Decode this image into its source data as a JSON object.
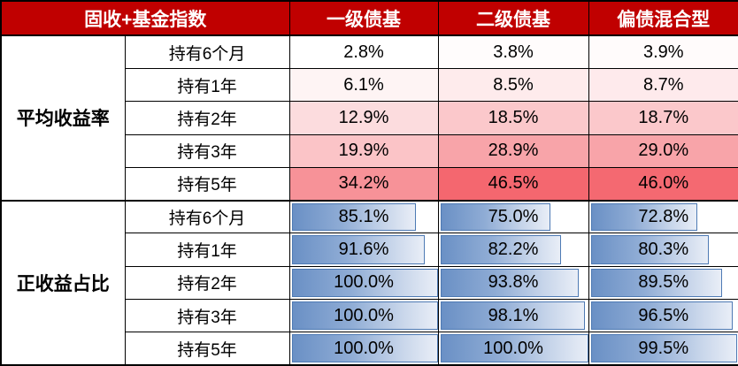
{
  "table": {
    "header": {
      "corner": "固收+基金指数",
      "columns": [
        "一级债基",
        "二级债基",
        "偏债混合型"
      ]
    },
    "sections": [
      {
        "label": "平均收益率",
        "format": "colorscale",
        "rows": [
          {
            "label": "持有6个月",
            "values": [
              "2.8%",
              "3.8%",
              "3.9%"
            ]
          },
          {
            "label": "持有1年",
            "values": [
              "6.1%",
              "8.5%",
              "8.7%"
            ]
          },
          {
            "label": "持有2年",
            "values": [
              "12.9%",
              "18.5%",
              "18.7%"
            ]
          },
          {
            "label": "持有3年",
            "values": [
              "19.9%",
              "28.9%",
              "29.0%"
            ]
          },
          {
            "label": "持有5年",
            "values": [
              "34.2%",
              "46.5%",
              "46.0%"
            ]
          }
        ]
      },
      {
        "label": "正收益占比",
        "format": "databar",
        "rows": [
          {
            "label": "持有6个月",
            "values": [
              "85.1%",
              "75.0%",
              "72.8%"
            ]
          },
          {
            "label": "持有1年",
            "values": [
              "91.6%",
              "82.2%",
              "80.3%"
            ]
          },
          {
            "label": "持有2年",
            "values": [
              "100.0%",
              "93.8%",
              "89.5%"
            ]
          },
          {
            "label": "持有3年",
            "values": [
              "100.0%",
              "98.1%",
              "96.5%"
            ]
          },
          {
            "label": "持有5年",
            "values": [
              "100.0%",
              "100.0%",
              "99.5%"
            ]
          }
        ]
      }
    ]
  },
  "colors": {
    "header_bg": "#c00000",
    "header_text": "#ffffff",
    "grid": "#000000",
    "scale_low": "#ffffff",
    "scale_high": "#f4676f",
    "bar_border": "#4e7ab4",
    "bar_fill_left": "#6a90c5",
    "bar_fill_right": "#e9eef7"
  },
  "chart_data": {
    "type": "table",
    "title": "固收+基金指数",
    "columns": [
      "一级债基",
      "二级债基",
      "偏债混合型"
    ],
    "row_groups": [
      {
        "label": "平均收益率",
        "unit": "%",
        "style": "red-white color scale",
        "rows": [
          {
            "label": "持有6个月",
            "values": [
              2.8,
              3.8,
              3.9
            ]
          },
          {
            "label": "持有1年",
            "values": [
              6.1,
              8.5,
              8.7
            ]
          },
          {
            "label": "持有2年",
            "values": [
              12.9,
              18.5,
              18.7
            ]
          },
          {
            "label": "持有3年",
            "values": [
              19.9,
              28.9,
              29.0
            ]
          },
          {
            "label": "持有5年",
            "values": [
              34.2,
              46.5,
              46.0
            ]
          }
        ]
      },
      {
        "label": "正收益占比",
        "unit": "%",
        "style": "blue gradient data bars, width proportional to value (0-100%)",
        "rows": [
          {
            "label": "持有6个月",
            "values": [
              85.1,
              75.0,
              72.8
            ]
          },
          {
            "label": "持有1年",
            "values": [
              91.6,
              82.2,
              80.3
            ]
          },
          {
            "label": "持有2年",
            "values": [
              100.0,
              93.8,
              89.5
            ]
          },
          {
            "label": "持有3年",
            "values": [
              100.0,
              98.1,
              96.5
            ]
          },
          {
            "label": "持有5年",
            "values": [
              100.0,
              100.0,
              99.5
            ]
          }
        ]
      }
    ]
  }
}
